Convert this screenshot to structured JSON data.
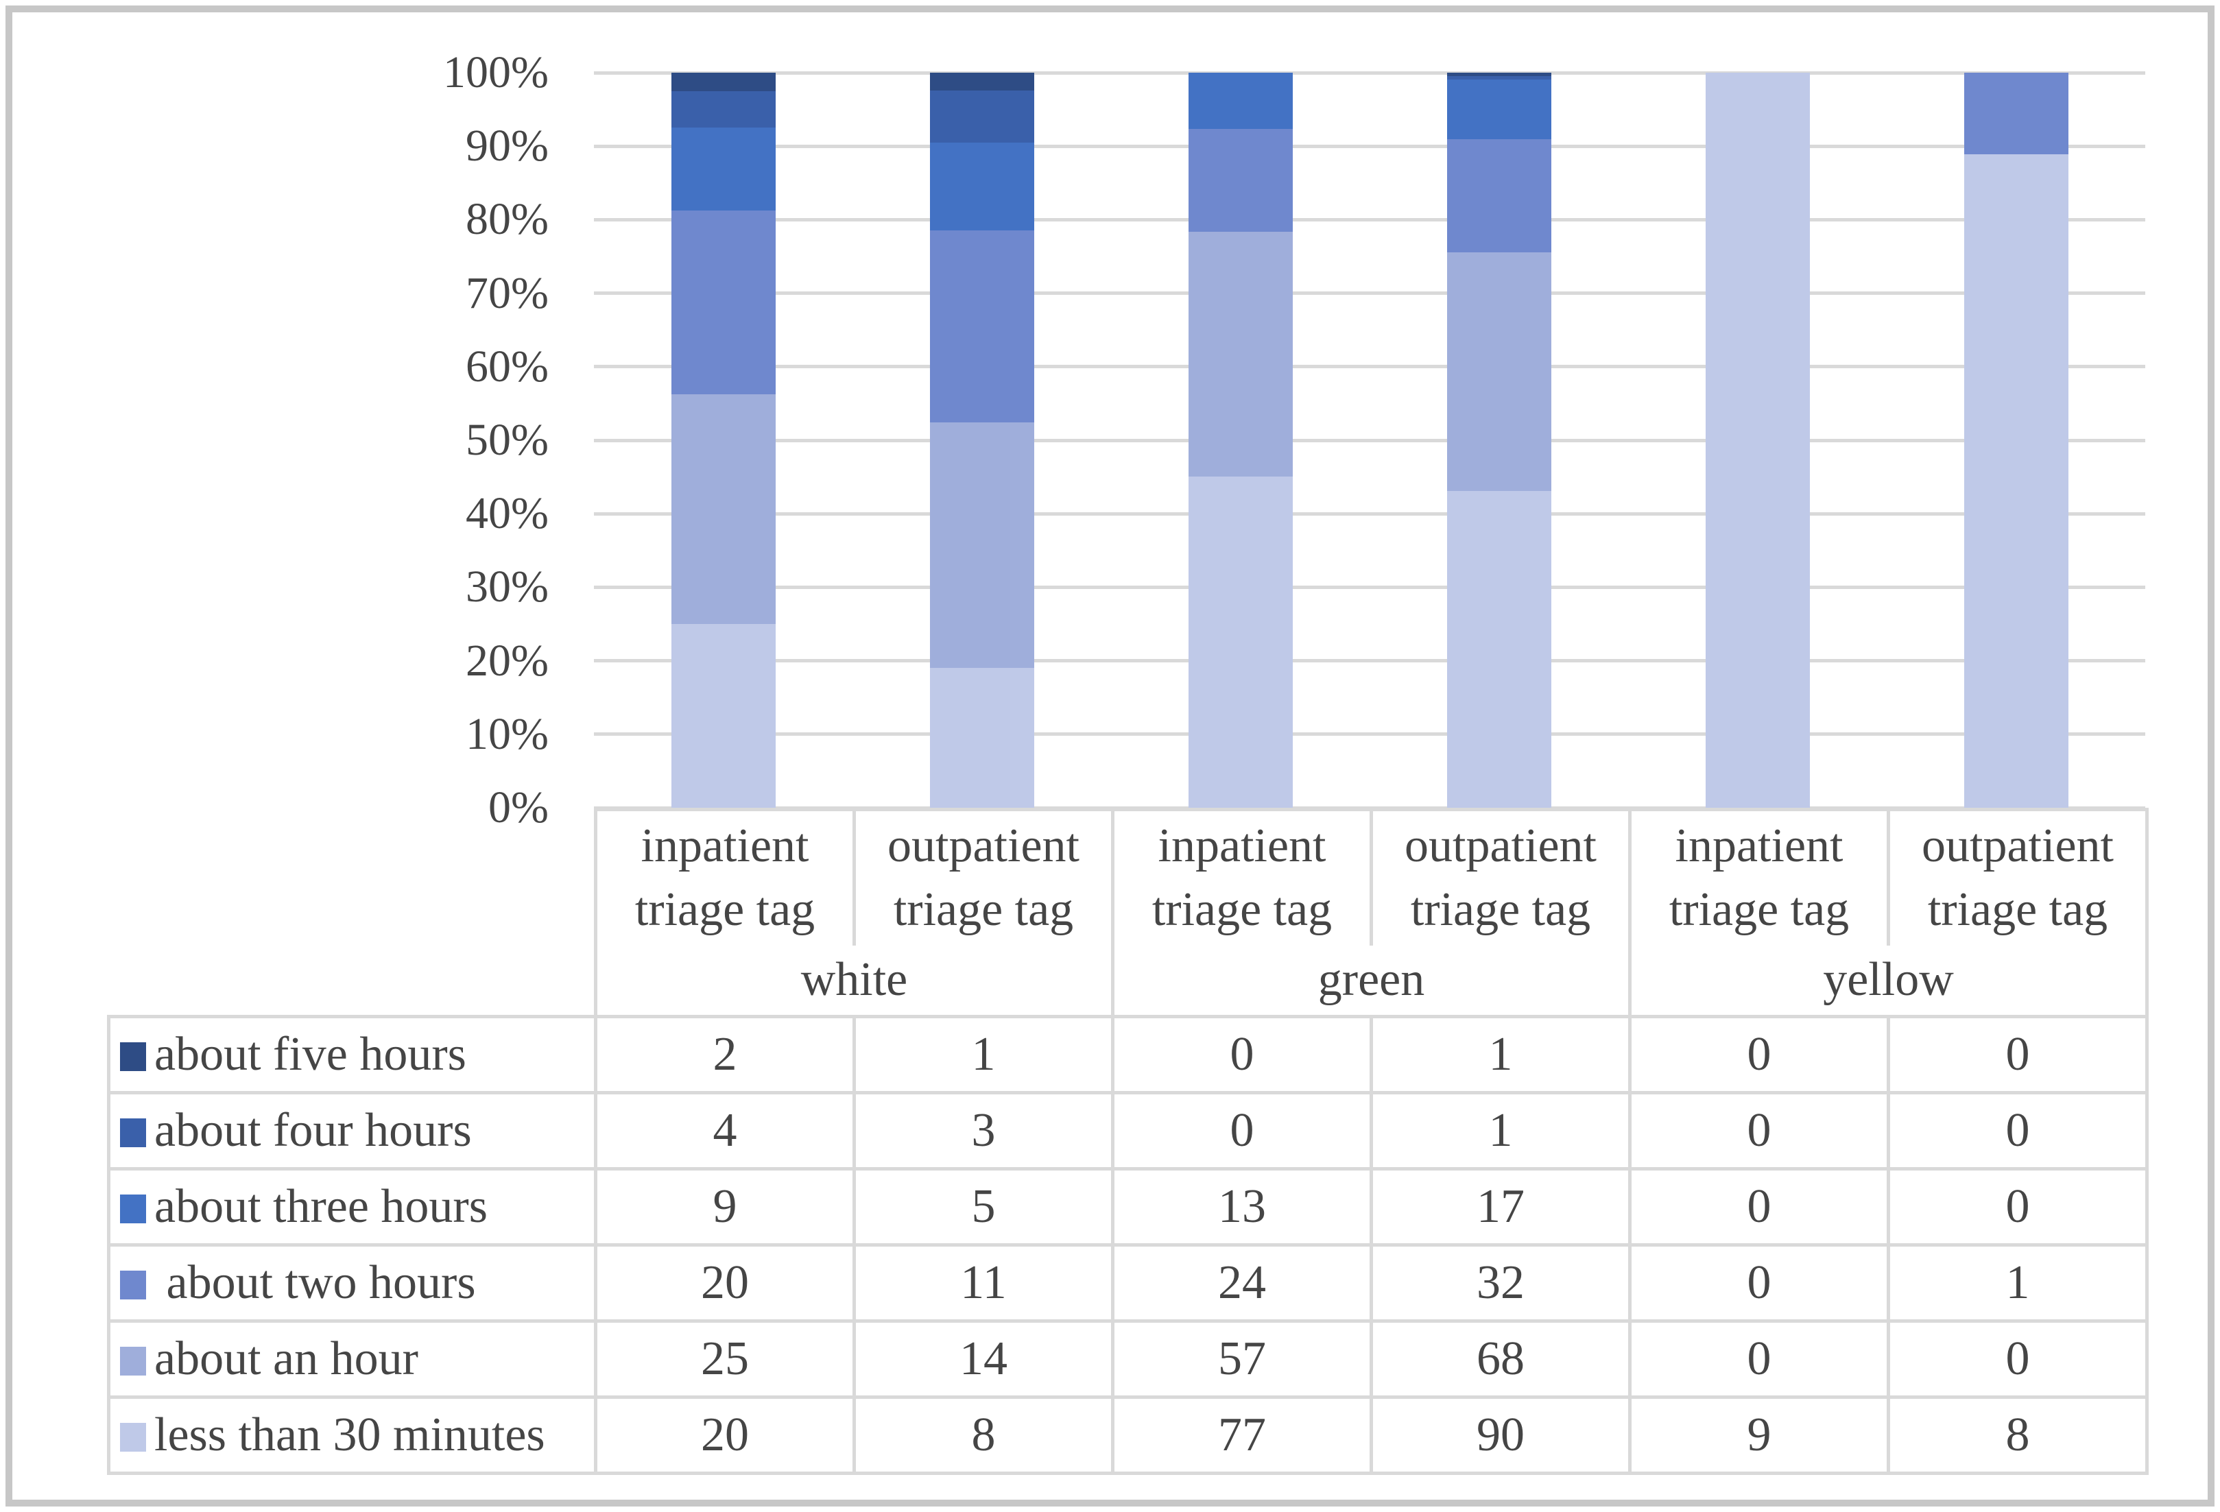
{
  "figure": {
    "background": "#ffffff",
    "frame_border_color": "#c7c7c7"
  },
  "colors": {
    "gridline": "#d9d9d9",
    "table_border": "#d9d9d9",
    "text": "#454545"
  },
  "chart_data": {
    "type": "bar",
    "stacked": true,
    "percent_axis": true,
    "title": "",
    "xlabel": "",
    "ylabel": "",
    "ylim": [
      0,
      100
    ],
    "grid": true,
    "legend_position": "table-left",
    "y_ticks": [
      "100%",
      "90%",
      "80%",
      "70%",
      "60%",
      "50%",
      "40%",
      "30%",
      "20%",
      "10%",
      "0%"
    ],
    "group_labels": [
      "white",
      "green",
      "yellow"
    ],
    "column_labels": [
      "inpatient triage tag",
      "outpatient triage tag",
      "inpatient triage tag",
      "outpatient triage tag",
      "inpatient triage tag",
      "outpatient triage tag"
    ],
    "series": [
      {
        "name": "about five hours",
        "color": "#2e4c85",
        "values": [
          2,
          1,
          0,
          1,
          0,
          0
        ]
      },
      {
        "name": "about four hours",
        "color": "#3a60aa",
        "values": [
          4,
          3,
          0,
          1,
          0,
          0
        ]
      },
      {
        "name": "about three hours",
        "color": "#4372c4",
        "values": [
          9,
          5,
          13,
          17,
          0,
          0
        ]
      },
      {
        "name": " about two hours",
        "color": "#6f88ce",
        "values": [
          20,
          11,
          24,
          32,
          0,
          1
        ]
      },
      {
        "name": "about an hour",
        "color": "#9faedb",
        "values": [
          25,
          14,
          57,
          68,
          0,
          0
        ]
      },
      {
        "name": "less than 30 minutes",
        "color": "#bfc9e8",
        "values": [
          20,
          8,
          77,
          90,
          9,
          8
        ]
      }
    ]
  }
}
